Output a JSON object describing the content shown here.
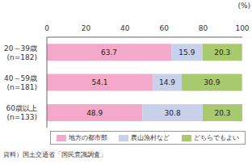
{
  "chart_data": {
    "type": "bar",
    "orientation": "horizontal",
    "stacked": true,
    "data_labels": true,
    "grid": false,
    "legend": "bottom",
    "xlabel": "(%)",
    "source": "資料）国土交通省「国民意識調査」",
    "categories": [
      "20～39歳\n(n=182)",
      "40～59歳\n(n=181)",
      "60歳以上\n(n=133)"
    ],
    "xlim": [
      0,
      100
    ],
    "xticks": [
      0,
      20,
      40,
      60,
      80,
      100
    ],
    "series": [
      {
        "name": "地方の都市部",
        "color": "#f4a9cb",
        "values": [
          63.7,
          54.1,
          48.9
        ]
      },
      {
        "name": "農山漁村など",
        "color": "#c9d0ea",
        "values": [
          15.9,
          14.9,
          30.8
        ]
      },
      {
        "name": "どちらでもよい",
        "color": "#a9c96e",
        "values": [
          20.3,
          30.9,
          20.3
        ]
      }
    ]
  }
}
